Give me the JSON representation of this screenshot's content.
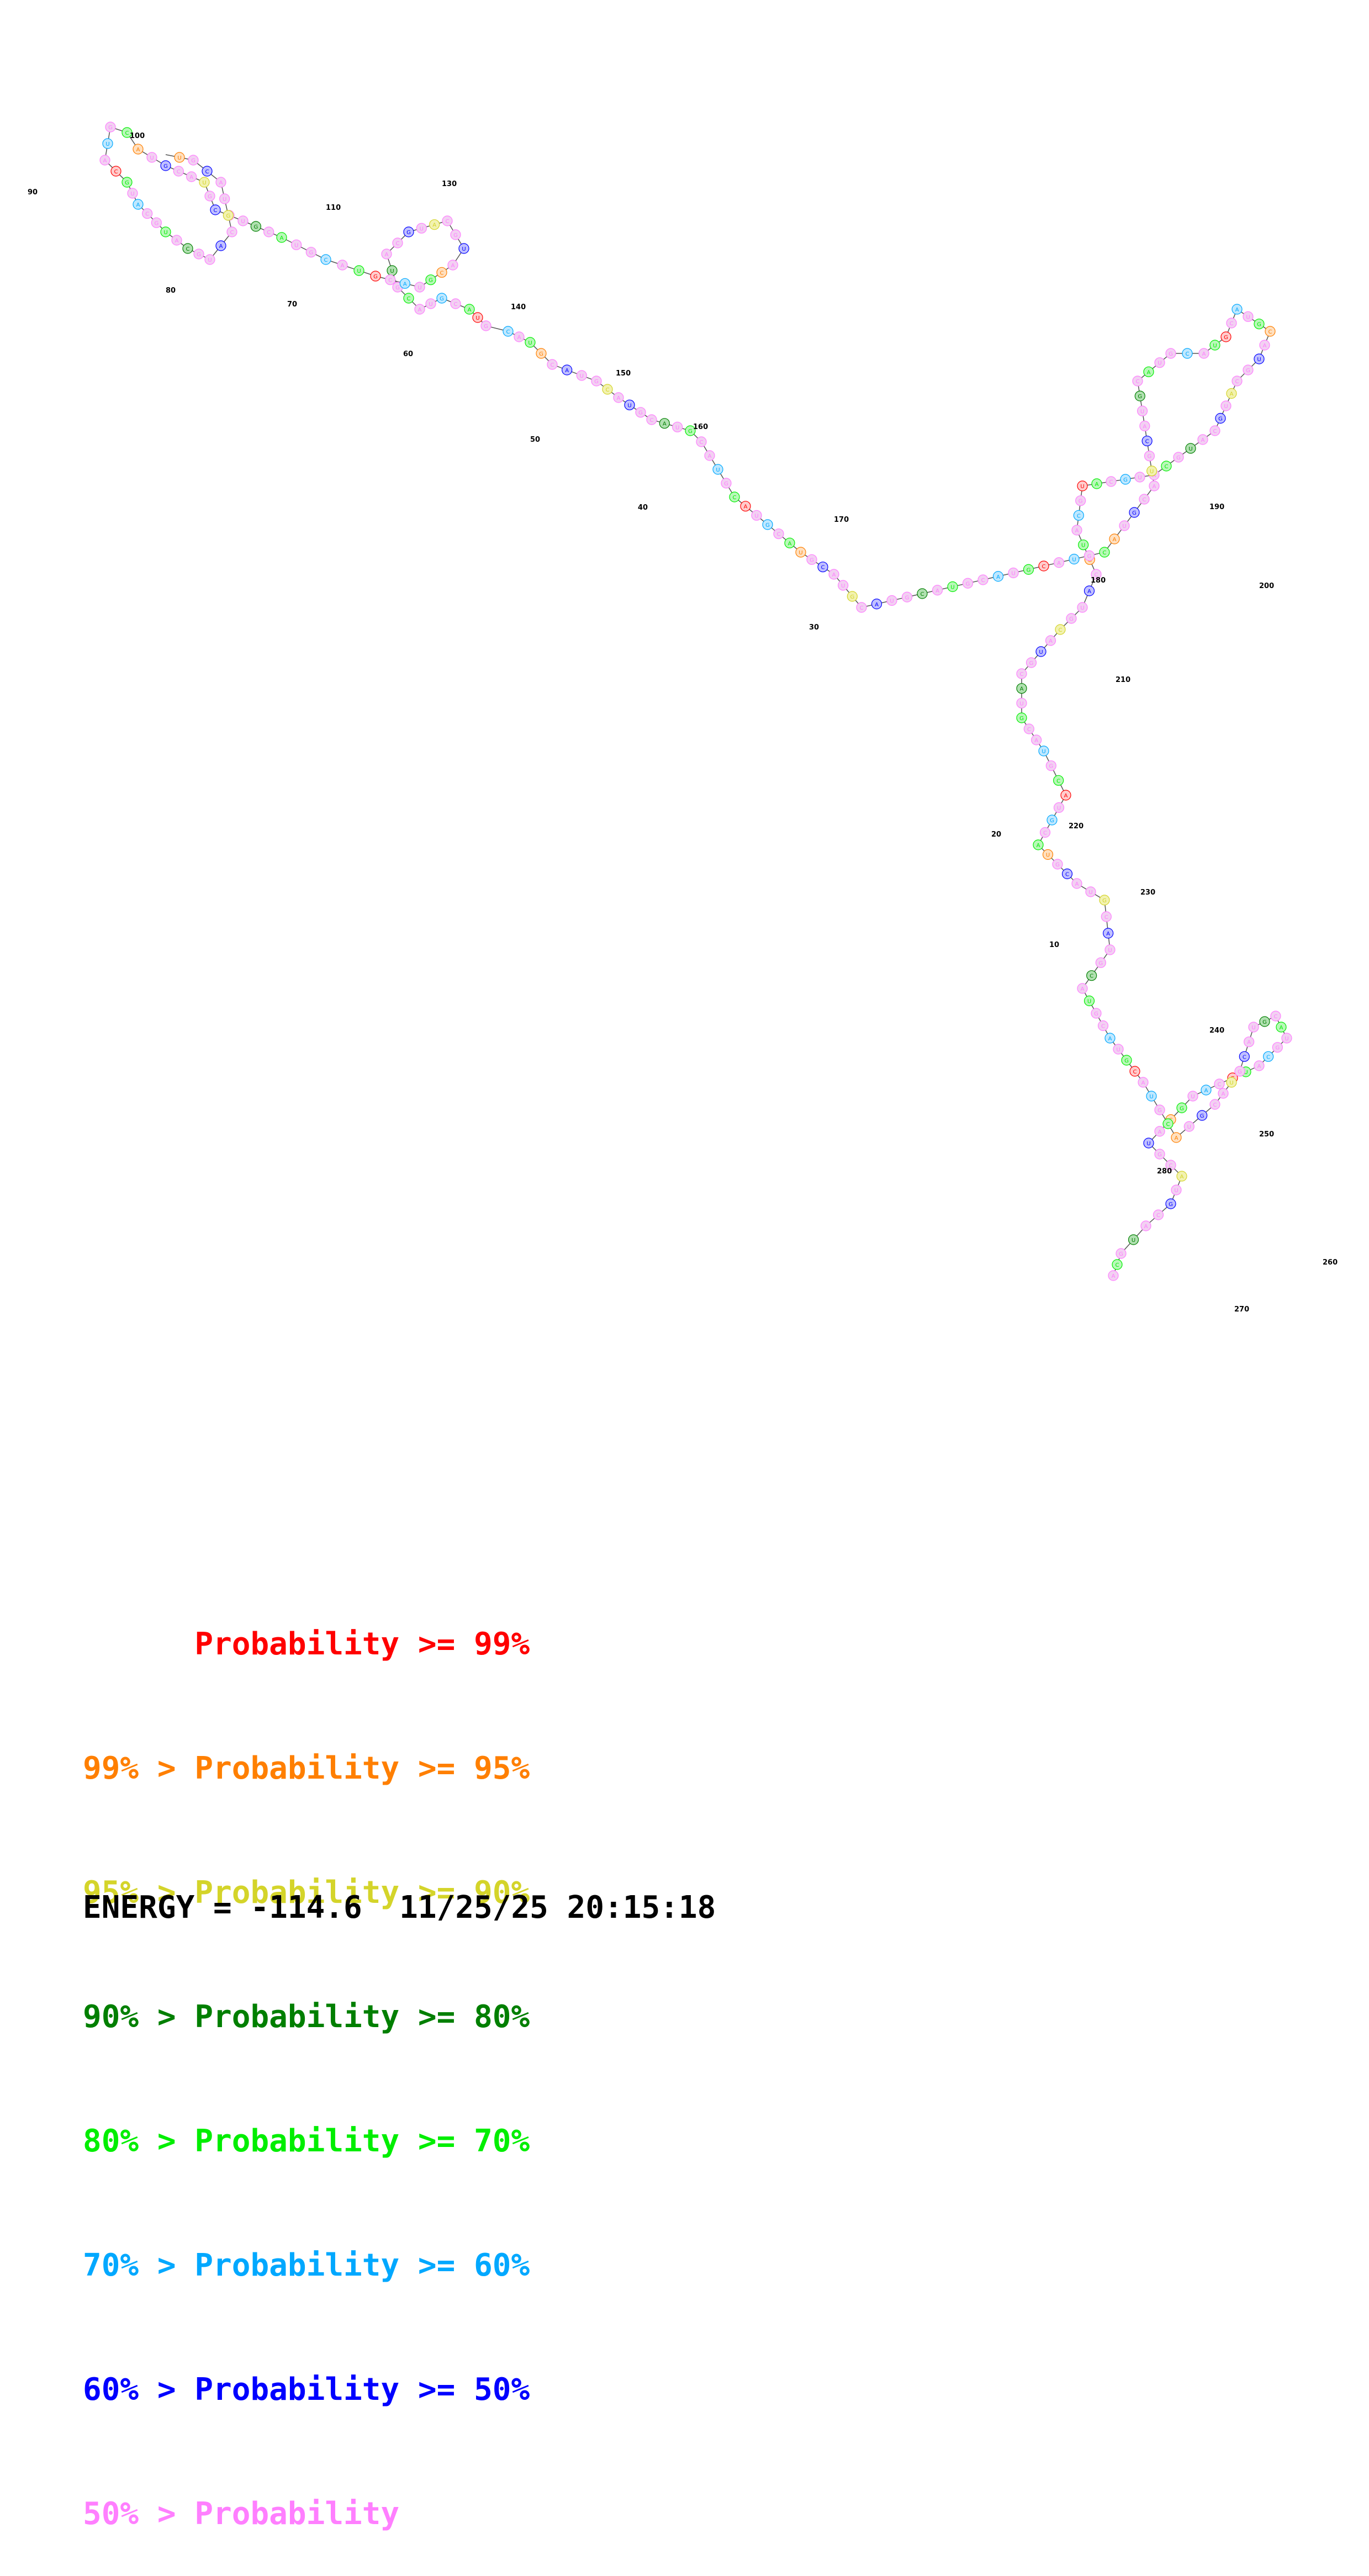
{
  "legend": [
    {
      "range_low": "",
      "gt": "",
      "label": "Probability",
      "ge": ">=",
      "range_high": "99%",
      "color": "#ff0000"
    },
    {
      "range_low": "99%",
      "gt": ">",
      "label": "Probability",
      "ge": ">=",
      "range_high": "95%",
      "color": "#ff7f00"
    },
    {
      "range_low": "95%",
      "gt": ">",
      "label": "Probability",
      "ge": ">=",
      "range_high": "90%",
      "color": "#d4d42a"
    },
    {
      "range_low": "90%",
      "gt": ">",
      "label": "Probability",
      "ge": ">=",
      "range_high": "80%",
      "color": "#007f00"
    },
    {
      "range_low": "80%",
      "gt": ">",
      "label": "Probability",
      "ge": ">=",
      "range_high": "70%",
      "color": "#00ee00"
    },
    {
      "range_low": "70%",
      "gt": ">",
      "label": "Probability",
      "ge": ">=",
      "range_high": "60%",
      "color": "#00a8ff"
    },
    {
      "range_low": "60%",
      "gt": ">",
      "label": "Probability",
      "ge": ">=",
      "range_high": "50%",
      "color": "#0000ff"
    },
    {
      "range_low": "50%",
      "gt": ">",
      "label": "Probability",
      "ge": "",
      "range_high": "",
      "color": "#ff7fff"
    }
  ],
  "energy_label": "ENERGY =",
  "energy_value": "-114.6",
  "timestamp": "11/25/25 20:15:18",
  "position_labels": [
    "10",
    "20",
    "30",
    "40",
    "50",
    "60",
    "70",
    "80",
    "90",
    "100",
    "110",
    "130",
    "140",
    "150",
    "160",
    "170",
    "180",
    "190",
    "200",
    "210",
    "220",
    "230",
    "240",
    "250",
    "260",
    "270",
    "280"
  ]
}
